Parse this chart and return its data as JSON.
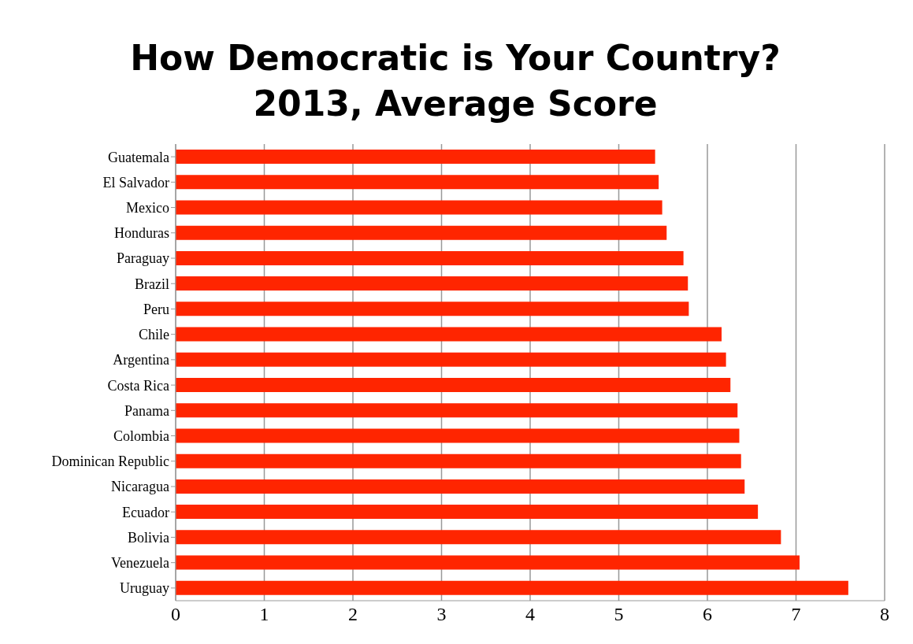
{
  "chart_data": {
    "type": "bar",
    "orientation": "horizontal",
    "title": "How Democratic is Your Country? 2013, Average Score",
    "categories": [
      "Guatemala",
      "El Salvador",
      "Mexico",
      "Honduras",
      "Paraguay",
      "Brazil",
      "Peru",
      "Chile",
      "Argentina",
      "Costa Rica",
      "Panama",
      "Colombia",
      "Dominican Republic",
      "Nicaragua",
      "Ecuador",
      "Bolivia",
      "Venezuela",
      "Uruguay"
    ],
    "values": [
      5.41,
      5.45,
      5.49,
      5.54,
      5.73,
      5.78,
      5.79,
      6.16,
      6.21,
      6.26,
      6.34,
      6.36,
      6.38,
      6.42,
      6.57,
      6.83,
      7.04,
      7.59
    ],
    "color": "#ff2500",
    "xlim": [
      0,
      8
    ],
    "xticks": [
      0,
      1,
      2,
      3,
      4,
      5,
      6,
      7,
      8
    ],
    "grid": "x"
  }
}
